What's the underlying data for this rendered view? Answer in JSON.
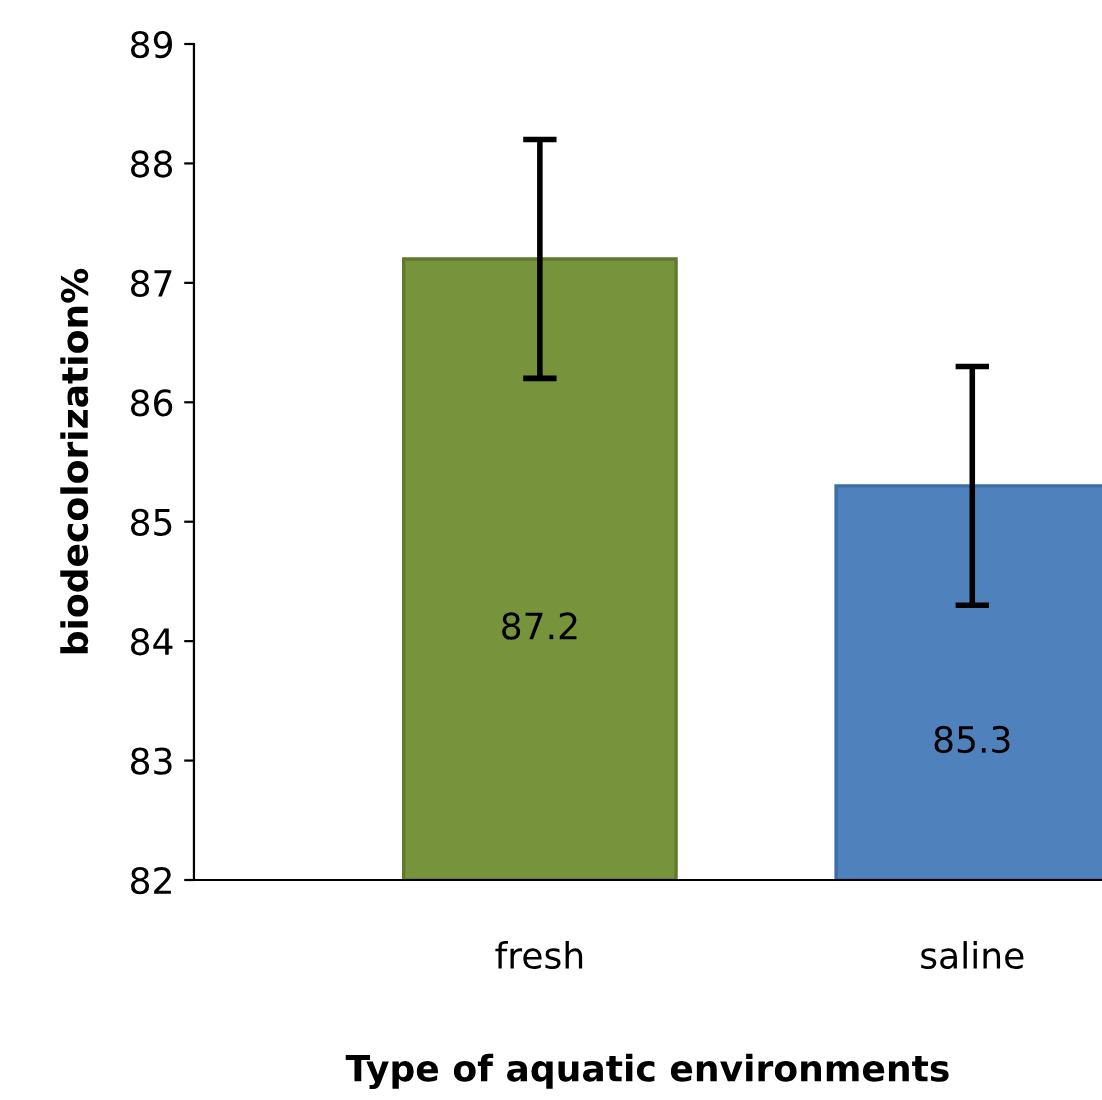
{
  "chart_data": {
    "type": "bar",
    "xlabel": "Type of aquatic environments",
    "ylabel": "biodecolorization%",
    "categories": [
      "fresh",
      "saline"
    ],
    "values": [
      87.2,
      85.3
    ],
    "colors": [
      "#77933c",
      "#4f81bd"
    ],
    "errors": [
      1,
      1
    ],
    "data_labels": true,
    "ylim": [
      82,
      89
    ],
    "yticks": [
      82,
      83,
      84,
      85,
      86,
      87,
      88,
      89
    ],
    "grid": false,
    "legend": false
  }
}
